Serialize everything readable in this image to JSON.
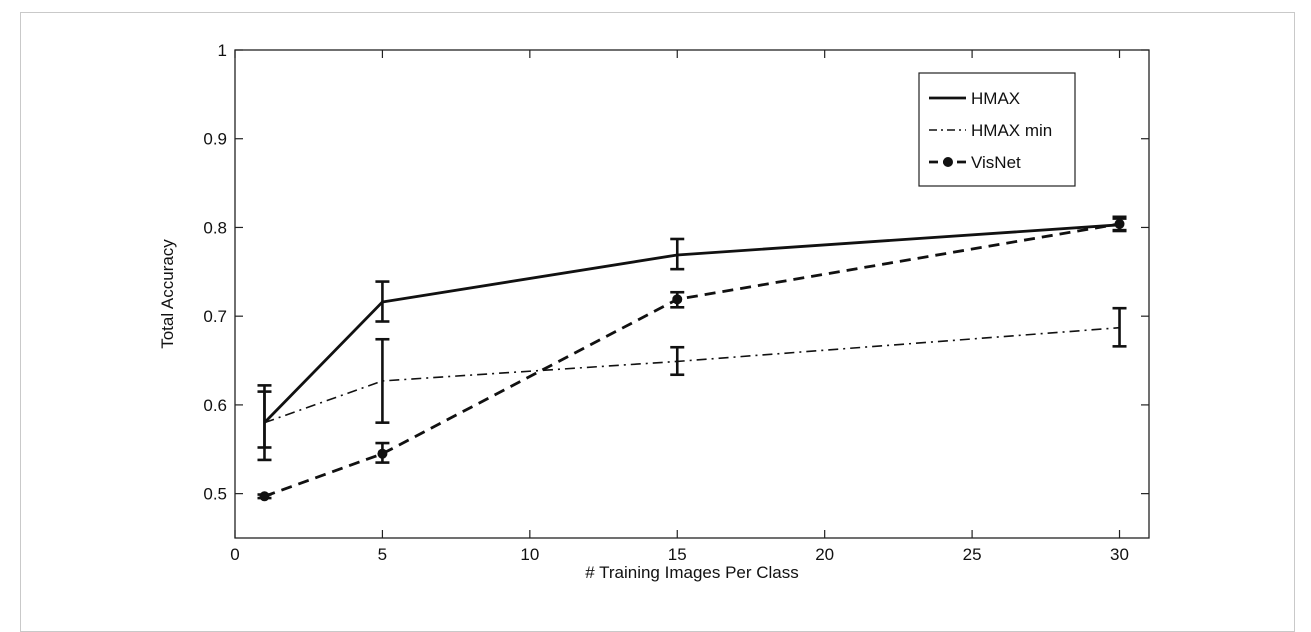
{
  "chart_data": {
    "type": "line",
    "xlabel": "# Training Images Per Class",
    "ylabel": "Total Accuracy",
    "xlim": [
      0,
      31
    ],
    "ylim": [
      0.45,
      1.0
    ],
    "xticks": [
      0,
      5,
      10,
      15,
      20,
      25,
      30
    ],
    "yticks": [
      0.5,
      0.6,
      0.7,
      0.8,
      0.9,
      1.0
    ],
    "ytick_labels": [
      "0.5",
      "0.6",
      "0.7",
      "0.8",
      "0.9",
      "1"
    ],
    "grid": false,
    "legend_position": "top-right",
    "x": [
      1,
      5,
      15,
      30
    ],
    "series": [
      {
        "name": "HMAX",
        "style": "solid",
        "marker": "none",
        "values": [
          0.58,
          0.716,
          0.769,
          0.803
        ],
        "err_low": [
          0.552,
          0.694,
          0.753,
          0.797
        ],
        "err_high": [
          0.622,
          0.739,
          0.787,
          0.81
        ]
      },
      {
        "name": "HMAX min",
        "style": "dashdot",
        "marker": "none",
        "values": [
          0.58,
          0.627,
          0.649,
          0.687
        ],
        "err_low": [
          0.538,
          0.58,
          0.634,
          0.666
        ],
        "err_high": [
          0.615,
          0.674,
          0.665,
          0.709
        ]
      },
      {
        "name": "VisNet",
        "style": "dashed",
        "marker": "circle",
        "values": [
          0.497,
          0.545,
          0.719,
          0.804
        ],
        "err_low": [
          0.495,
          0.535,
          0.71,
          0.796
        ],
        "err_high": [
          0.499,
          0.557,
          0.727,
          0.812
        ]
      }
    ]
  }
}
